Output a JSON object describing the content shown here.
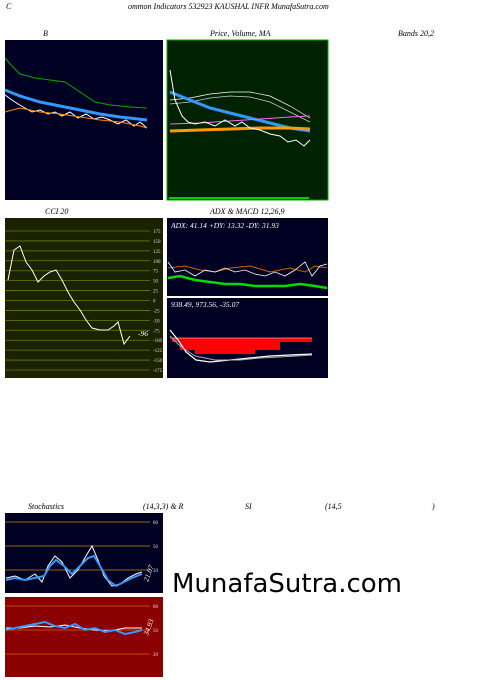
{
  "header": {
    "initial": "C",
    "title": "ommon  Indicators 532923 KAUSHAL  INFR MunafaSutra.com"
  },
  "panels": {
    "bands": {
      "title": "B"
    },
    "price": {
      "title": "Price, Volume, MA"
    },
    "bands_params": {
      "title": "Bands 20,2"
    },
    "cci": {
      "title": "CCI 20",
      "ticks": [
        "175",
        "150",
        "125",
        "100",
        "75",
        "50",
        "25",
        "0",
        "-25",
        "-50",
        "-75",
        "-100",
        "-125",
        "-150",
        "-175"
      ],
      "last_label": "-96"
    },
    "adx": {
      "title": "ADX  & MACD 12,26,9",
      "values": "ADX: 41.14  +DY: 13.32  -DY: 31.93"
    },
    "macd": {
      "values": "938.49,  973.56,  -35.07"
    },
    "stochastics": {
      "title": "Stochastics",
      "params": "(14,3,3) & R",
      "rsi_part": "SI",
      "rsi_params": "(14,5",
      "close": ")",
      "ticks": [
        "80",
        "50",
        "20"
      ],
      "last_label": "21.07"
    },
    "rsi": {
      "ticks": [
        "80",
        "50",
        "20"
      ],
      "last_label": "34.93"
    }
  },
  "watermark": "MunafaSutra.com"
}
